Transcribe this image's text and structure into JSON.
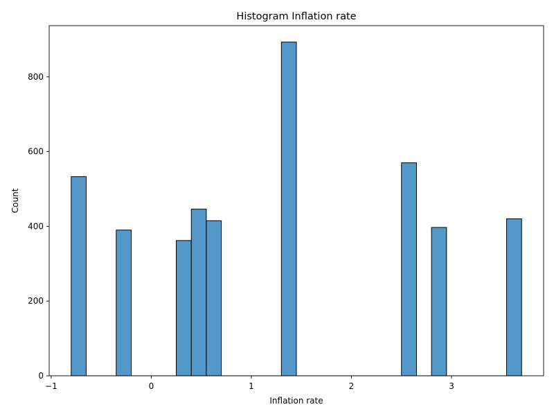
{
  "chart_data": {
    "type": "bar",
    "title": "Histogram Inflation rate",
    "xlabel": "Inflation rate",
    "ylabel": "Count",
    "xlim": [
      -1.02,
      3.92
    ],
    "ylim": [
      0,
      937
    ],
    "x_ticks": [
      -1,
      0,
      1,
      2,
      3
    ],
    "y_ticks": [
      0,
      200,
      400,
      600,
      800
    ],
    "bin_width": 0.15,
    "bins": [
      {
        "start": -0.8,
        "end": -0.65,
        "count": 533
      },
      {
        "start": -0.35,
        "end": -0.2,
        "count": 390
      },
      {
        "start": 0.25,
        "end": 0.4,
        "count": 362
      },
      {
        "start": 0.4,
        "end": 0.55,
        "count": 446
      },
      {
        "start": 0.55,
        "end": 0.7,
        "count": 415
      },
      {
        "start": 1.3,
        "end": 1.45,
        "count": 893
      },
      {
        "start": 2.5,
        "end": 2.65,
        "count": 570
      },
      {
        "start": 2.8,
        "end": 2.95,
        "count": 397
      },
      {
        "start": 3.55,
        "end": 3.7,
        "count": 420
      }
    ],
    "bar_color": "#5497c9",
    "edge_color": "#000000",
    "grid": false,
    "legend": "none"
  }
}
